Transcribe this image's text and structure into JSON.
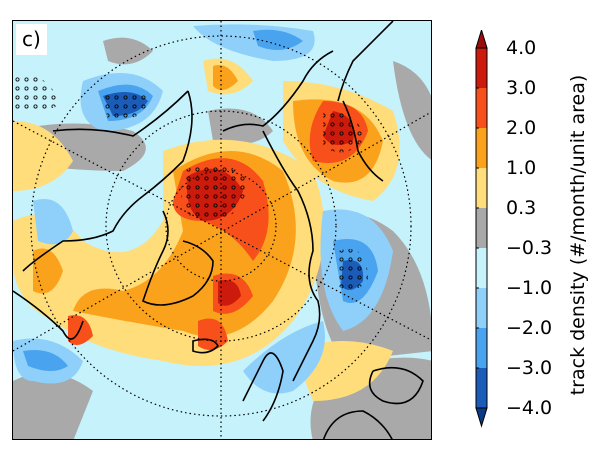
{
  "panel_label": "c)",
  "colorbar": {
    "label": "track density (#/month/unit area)",
    "ticks": [
      "4.0",
      "3.0",
      "2.0",
      "1.0",
      "0.3",
      "−0.3",
      "−1.0",
      "−2.0",
      "−3.0",
      "−4.0"
    ],
    "bounds": [
      -4.0,
      -3.0,
      -2.0,
      -1.0,
      -0.3,
      0.3,
      1.0,
      2.0,
      3.0,
      4.0
    ],
    "colors": [
      "#1a5cb8",
      "#4aa3ee",
      "#8fd0fb",
      "#c6f2fc",
      "#a9a9a9",
      "#fedd7a",
      "#fba21c",
      "#f8501a",
      "#cc1a0c"
    ],
    "extend_low_color": "#0d3a86",
    "extend_high_color": "#9a0d0d"
  },
  "map": {
    "projection": "north-polar-stereographic",
    "stippling": "significant regions marked with circles"
  }
}
